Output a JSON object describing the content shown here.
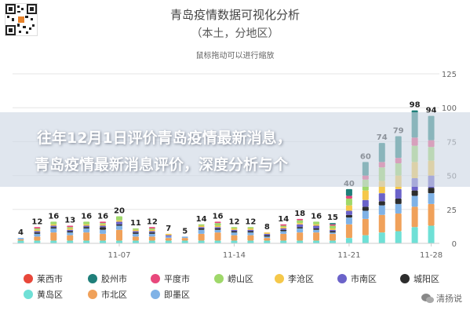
{
  "header": {
    "title": "青岛疫情数据可视化分析",
    "subtitle": "（本土，分地区）",
    "hint": "鼠标拖动可以进行缩放"
  },
  "banner": {
    "line1": "往年12月1日评价青岛疫情最新消息，",
    "line2": "青岛疫情最新消息评价，深度分析与个"
  },
  "watermark": {
    "text": "清扬说"
  },
  "chart_data": {
    "type": "bar",
    "stacked": true,
    "ylim": [
      0,
      125
    ],
    "yticks": [
      0,
      25,
      50,
      75,
      100,
      125
    ],
    "grid": true,
    "legend_position": "bottom",
    "x_tick_labels": [
      "11-07",
      "11-14",
      "11-21",
      "11-28"
    ],
    "categories": [
      "d1",
      "d2",
      "d3",
      "d4",
      "d5",
      "d6",
      "d7",
      "d8",
      "d9",
      "d10",
      "d11",
      "d12",
      "d13",
      "d14",
      "d15",
      "d16",
      "d17",
      "d18",
      "d19",
      "d20",
      "d21",
      "d22",
      "d23",
      "d24",
      "d25",
      "d26"
    ],
    "category_tick_index": [
      6,
      13,
      20,
      25
    ],
    "totals": [
      4,
      12,
      16,
      13,
      16,
      16,
      20,
      11,
      12,
      7,
      5,
      14,
      16,
      12,
      12,
      8,
      14,
      18,
      16,
      15,
      40,
      60,
      74,
      79,
      98,
      94
    ],
    "series": [
      {
        "name": "莱西市",
        "color": "#e8473a",
        "values": [
          0,
          0,
          0,
          0,
          0,
          0,
          0,
          0,
          0,
          0,
          0,
          0,
          0,
          0,
          0,
          0,
          0,
          0,
          0,
          0,
          0,
          0,
          0,
          0,
          0,
          0
        ]
      },
      {
        "name": "胶州市",
        "color": "#1f7f7a",
        "values": [
          0,
          0,
          0,
          0,
          0,
          0,
          0,
          0,
          0,
          0,
          0,
          0,
          0,
          0,
          0,
          0,
          0,
          0,
          0,
          1,
          5,
          10,
          14,
          16,
          20,
          18
        ]
      },
      {
        "name": "平度市",
        "color": "#e8487c",
        "values": [
          0,
          1,
          0,
          1,
          0,
          1,
          0,
          0,
          1,
          0,
          0,
          0,
          1,
          0,
          0,
          0,
          1,
          1,
          0,
          1,
          2,
          3,
          4,
          4,
          6,
          5
        ]
      },
      {
        "name": "崂山区",
        "color": "#9fd86a",
        "values": [
          0,
          1,
          2,
          1,
          2,
          1,
          3,
          1,
          1,
          0,
          0,
          1,
          2,
          1,
          1,
          0,
          1,
          2,
          2,
          2,
          5,
          8,
          10,
          9,
          12,
          10
        ]
      },
      {
        "name": "李沧区",
        "color": "#f5c84a",
        "values": [
          0,
          1,
          1,
          1,
          1,
          1,
          1,
          1,
          1,
          1,
          0,
          1,
          1,
          1,
          1,
          1,
          1,
          1,
          1,
          1,
          4,
          7,
          9,
          10,
          12,
          11
        ]
      },
      {
        "name": "市南区",
        "color": "#6b63c9",
        "values": [
          0,
          1,
          1,
          1,
          1,
          1,
          2,
          1,
          1,
          1,
          0,
          1,
          1,
          1,
          1,
          1,
          1,
          2,
          2,
          1,
          3,
          5,
          6,
          7,
          9,
          9
        ]
      },
      {
        "name": "城阳区",
        "color": "#2d2d2d",
        "values": [
          0,
          1,
          1,
          1,
          1,
          2,
          1,
          1,
          1,
          0,
          0,
          1,
          1,
          1,
          1,
          1,
          1,
          1,
          1,
          1,
          2,
          3,
          3,
          4,
          4,
          4
        ]
      },
      {
        "name": "黄岛区",
        "color": "#6fe0d6",
        "values": [
          2,
          2,
          2,
          2,
          2,
          2,
          2,
          2,
          2,
          2,
          2,
          2,
          2,
          2,
          2,
          2,
          2,
          2,
          2,
          2,
          4,
          6,
          8,
          9,
          12,
          13
        ]
      },
      {
        "name": "市北区",
        "color": "#f0a15a",
        "values": [
          1,
          3,
          6,
          4,
          6,
          5,
          8,
          3,
          3,
          2,
          2,
          5,
          6,
          4,
          4,
          2,
          5,
          6,
          6,
          5,
          10,
          12,
          13,
          13,
          15,
          16
        ]
      },
      {
        "name": "即墨区",
        "color": "#7fb2e6",
        "values": [
          1,
          2,
          3,
          2,
          3,
          3,
          3,
          2,
          2,
          1,
          1,
          3,
          2,
          2,
          2,
          1,
          2,
          3,
          2,
          1,
          5,
          6,
          7,
          7,
          8,
          8
        ]
      }
    ]
  }
}
